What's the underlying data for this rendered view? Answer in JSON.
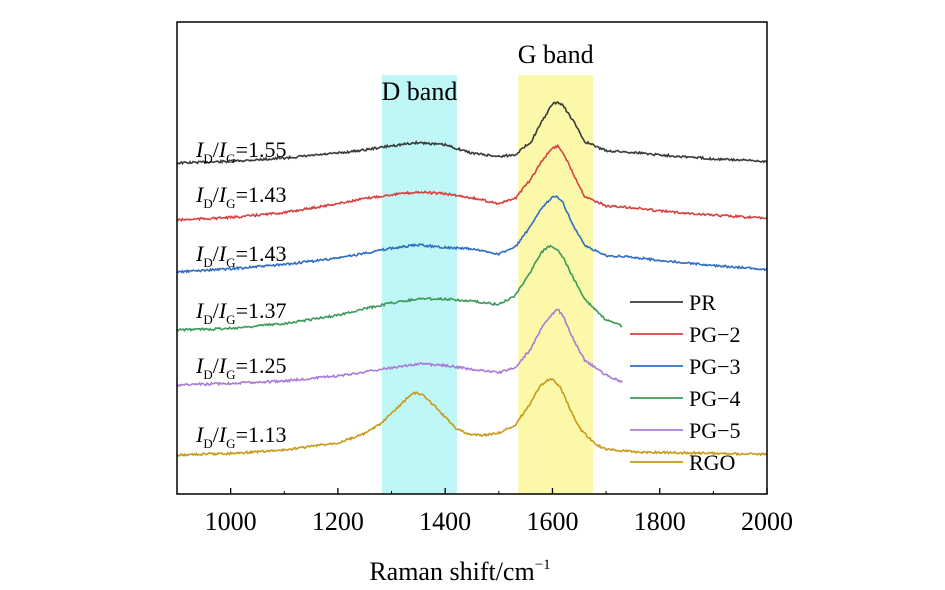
{
  "chart_data": {
    "type": "line",
    "title": "",
    "xlabel": "Raman shift/cm",
    "xlabel_superscript": "−1",
    "ylabel": "",
    "xlim": [
      900,
      2000
    ],
    "x_ticks": [
      1000,
      1200,
      1400,
      1600,
      1800,
      2000
    ],
    "grid": false,
    "legend_position": "right",
    "bands": [
      {
        "label": "D band",
        "range": [
          1282,
          1422
        ],
        "color": "#bff6f6"
      },
      {
        "label": "G band",
        "range": [
          1536,
          1676
        ],
        "color": "#fbf8aa"
      }
    ],
    "ratio_labels": [
      {
        "series": "PR",
        "i1": "I",
        "sub1": "D",
        "slash": "/",
        "i2": "I",
        "sub2": "G",
        "value": "=1.55"
      },
      {
        "series": "PG−2",
        "i1": "I",
        "sub1": "D",
        "slash": "/",
        "i2": "I",
        "sub2": "G",
        "value": "=1.43"
      },
      {
        "series": "PG−3",
        "i1": "I",
        "sub1": "D",
        "slash": "/",
        "i2": "I",
        "sub2": "G",
        "value": "=1.43"
      },
      {
        "series": "PG−4",
        "i1": "I",
        "sub1": "D",
        "slash": "/",
        "i2": "I",
        "sub2": "G",
        "value": "=1.37"
      },
      {
        "series": "PG−5",
        "i1": "I",
        "sub1": "D",
        "slash": "/",
        "i2": "I",
        "sub2": "G",
        "value": "=1.25"
      },
      {
        "series": "RGO",
        "i1": "I",
        "sub1": "D",
        "slash": "/",
        "i2": "I",
        "sub2": "G",
        "value": "=1.13"
      }
    ],
    "series": [
      {
        "name": "PR",
        "color": "#3a3a3a",
        "x": [
          900,
          1000,
          1100,
          1200,
          1250,
          1300,
          1350,
          1400,
          1450,
          1500,
          1530,
          1560,
          1580,
          1600,
          1610,
          1620,
          1640,
          1660,
          1700,
          1750,
          1800,
          1900,
          2000
        ],
        "y": [
          0.0,
          0.02,
          0.06,
          0.12,
          0.16,
          0.21,
          0.25,
          0.22,
          0.12,
          0.08,
          0.1,
          0.26,
          0.5,
          0.72,
          0.74,
          0.7,
          0.5,
          0.26,
          0.15,
          0.13,
          0.1,
          0.05,
          0.02
        ]
      },
      {
        "name": "PG−2",
        "color": "#d94040",
        "x": [
          900,
          1000,
          1100,
          1200,
          1250,
          1300,
          1350,
          1400,
          1450,
          1500,
          1530,
          1560,
          1580,
          1600,
          1610,
          1620,
          1640,
          1660,
          1700,
          1750,
          1800,
          1900,
          2000
        ],
        "y": [
          0.0,
          0.03,
          0.09,
          0.2,
          0.26,
          0.31,
          0.34,
          0.32,
          0.27,
          0.2,
          0.26,
          0.5,
          0.72,
          0.88,
          0.9,
          0.82,
          0.55,
          0.29,
          0.17,
          0.15,
          0.11,
          0.06,
          0.02
        ]
      },
      {
        "name": "PG−3",
        "color": "#2f6ec4",
        "x": [
          900,
          1000,
          1100,
          1200,
          1250,
          1300,
          1350,
          1400,
          1450,
          1500,
          1530,
          1560,
          1580,
          1600,
          1610,
          1620,
          1640,
          1660,
          1700,
          1750,
          1800,
          1900,
          2000
        ],
        "y": [
          0.0,
          0.04,
          0.09,
          0.17,
          0.23,
          0.29,
          0.33,
          0.3,
          0.28,
          0.22,
          0.3,
          0.56,
          0.78,
          0.92,
          0.92,
          0.84,
          0.55,
          0.32,
          0.2,
          0.18,
          0.14,
          0.08,
          0.03
        ]
      },
      {
        "name": "PG−4",
        "color": "#3a9a5a",
        "x": [
          900,
          1000,
          1100,
          1200,
          1250,
          1300,
          1350,
          1400,
          1450,
          1500,
          1530,
          1560,
          1580,
          1595,
          1610,
          1620,
          1640,
          1660,
          1700,
          1730
        ],
        "y": [
          0.0,
          0.02,
          0.08,
          0.18,
          0.26,
          0.33,
          0.38,
          0.38,
          0.35,
          0.31,
          0.42,
          0.72,
          0.95,
          1.03,
          0.98,
          0.88,
          0.62,
          0.38,
          0.12,
          0.05
        ]
      },
      {
        "name": "PG−5",
        "color": "#a97bd6",
        "x": [
          900,
          1000,
          1100,
          1200,
          1250,
          1300,
          1350,
          1400,
          1450,
          1500,
          1530,
          1560,
          1580,
          1600,
          1610,
          1620,
          1640,
          1660,
          1700,
          1730
        ],
        "y": [
          0.0,
          0.02,
          0.05,
          0.11,
          0.16,
          0.21,
          0.26,
          0.24,
          0.19,
          0.15,
          0.21,
          0.44,
          0.7,
          0.87,
          0.92,
          0.84,
          0.54,
          0.3,
          0.12,
          0.04
        ]
      },
      {
        "name": "RGO",
        "color": "#c99a1a",
        "x": [
          900,
          1000,
          1100,
          1200,
          1250,
          1280,
          1310,
          1330,
          1345,
          1360,
          1380,
          1400,
          1420,
          1440,
          1470,
          1500,
          1530,
          1560,
          1575,
          1590,
          1600,
          1615,
          1630,
          1650,
          1680,
          1700,
          1750,
          1800,
          1900,
          2000
        ],
        "y": [
          0.0,
          0.02,
          0.06,
          0.15,
          0.26,
          0.38,
          0.57,
          0.7,
          0.76,
          0.72,
          0.6,
          0.46,
          0.33,
          0.26,
          0.24,
          0.27,
          0.36,
          0.64,
          0.82,
          0.92,
          0.92,
          0.82,
          0.6,
          0.33,
          0.13,
          0.07,
          0.04,
          0.03,
          0.02,
          0.01
        ]
      }
    ]
  }
}
